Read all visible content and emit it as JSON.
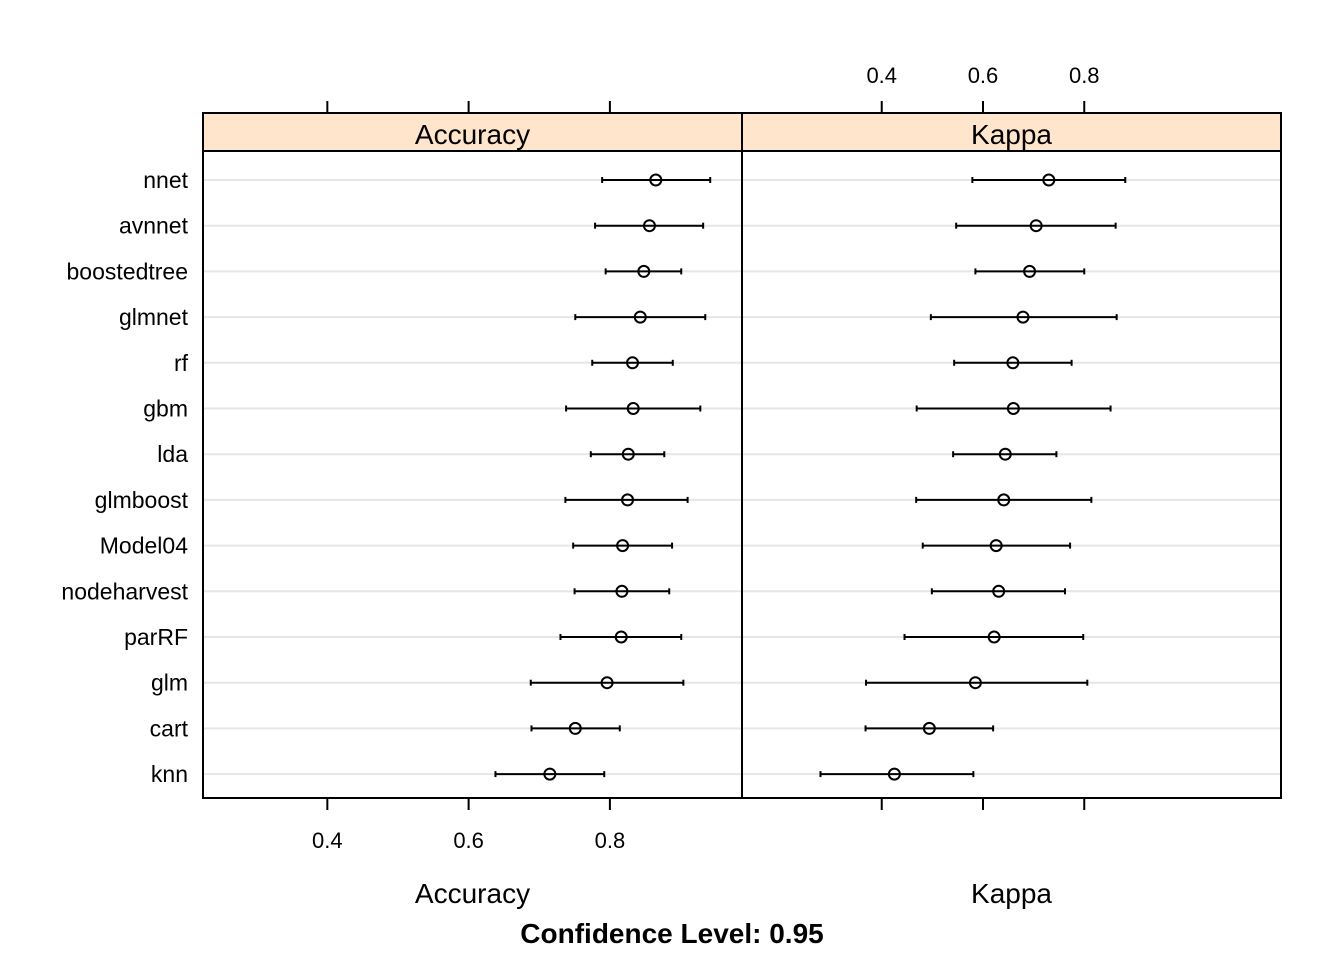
{
  "chart_data": {
    "type": "scatter",
    "subtype": "dotplot-with-confidence-intervals",
    "caption": "Confidence Level: 0.95",
    "models": [
      "nnet",
      "avnnet",
      "boostedtree",
      "glmnet",
      "rf",
      "gbm",
      "lda",
      "glmboost",
      "Model04",
      "nodeharvest",
      "parRF",
      "glm",
      "cart",
      "knn"
    ],
    "strip_color": "#ffe5cc",
    "grid": true,
    "panels": [
      {
        "name": "Accuracy",
        "xlabel": "Accuracy",
        "tick_position": "bottom",
        "ticks": [
          0.4,
          0.6,
          0.8
        ],
        "tick_labels": [
          "0.4",
          "0.6",
          "0.8"
        ],
        "xlim": [
          0.224,
          0.987
        ],
        "estimates": [
          0.865,
          0.856,
          0.848,
          0.843,
          0.832,
          0.833,
          0.826,
          0.825,
          0.818,
          0.817,
          0.816,
          0.796,
          0.751,
          0.715
        ],
        "lower": [
          0.789,
          0.779,
          0.794,
          0.751,
          0.775,
          0.738,
          0.773,
          0.737,
          0.748,
          0.75,
          0.73,
          0.688,
          0.689,
          0.638
        ],
        "upper": [
          0.942,
          0.932,
          0.901,
          0.935,
          0.889,
          0.928,
          0.877,
          0.91,
          0.888,
          0.884,
          0.901,
          0.904,
          0.814,
          0.792
        ]
      },
      {
        "name": "Kappa",
        "xlabel": "Kappa",
        "tick_position": "top",
        "ticks": [
          0.4,
          0.6,
          0.8
        ],
        "tick_labels": [
          "0.4",
          "0.6",
          "0.8"
        ],
        "xlim": [
          0.124,
          1.1886
        ],
        "estimates": [
          0.73,
          0.705,
          0.692,
          0.679,
          0.659,
          0.66,
          0.644,
          0.641,
          0.626,
          0.631,
          0.622,
          0.585,
          0.494,
          0.425
        ],
        "lower": [
          0.579,
          0.547,
          0.585,
          0.497,
          0.543,
          0.469,
          0.541,
          0.468,
          0.481,
          0.499,
          0.445,
          0.369,
          0.368,
          0.279
        ],
        "upper": [
          0.881,
          0.862,
          0.8,
          0.864,
          0.775,
          0.852,
          0.745,
          0.814,
          0.772,
          0.762,
          0.798,
          0.806,
          0.62,
          0.581
        ]
      }
    ]
  }
}
